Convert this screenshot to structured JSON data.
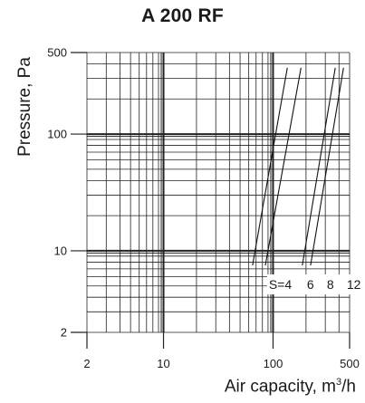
{
  "chart_data": {
    "type": "line",
    "title": "A 200 RF",
    "ylabel": "Pressure, Pa",
    "xlabel_prefix": "Air capacity, m",
    "xlabel_sup": "3",
    "xlabel_suffix": "/h",
    "xscale": "log",
    "yscale": "log",
    "xlim": [
      2,
      500
    ],
    "ylim": [
      2,
      500
    ],
    "xticks": [
      2,
      10,
      100,
      500
    ],
    "xtick_labels": [
      "2",
      "10",
      "100",
      "500"
    ],
    "yticks": [
      2,
      10,
      100,
      500
    ],
    "ytick_labels": [
      "2",
      "10",
      "100",
      "500"
    ],
    "grid": true,
    "series_label_prefix": "S=",
    "series": [
      {
        "name": "4",
        "x": [
          65,
          135
        ],
        "y": [
          7.5,
          370
        ]
      },
      {
        "name": "6",
        "x": [
          85,
          180
        ],
        "y": [
          7.5,
          370
        ]
      },
      {
        "name": "8",
        "x": [
          185,
          370
        ],
        "y": [
          7.5,
          370
        ]
      },
      {
        "name": "12",
        "x": [
          220,
          440
        ],
        "y": [
          7.5,
          370
        ]
      }
    ]
  }
}
